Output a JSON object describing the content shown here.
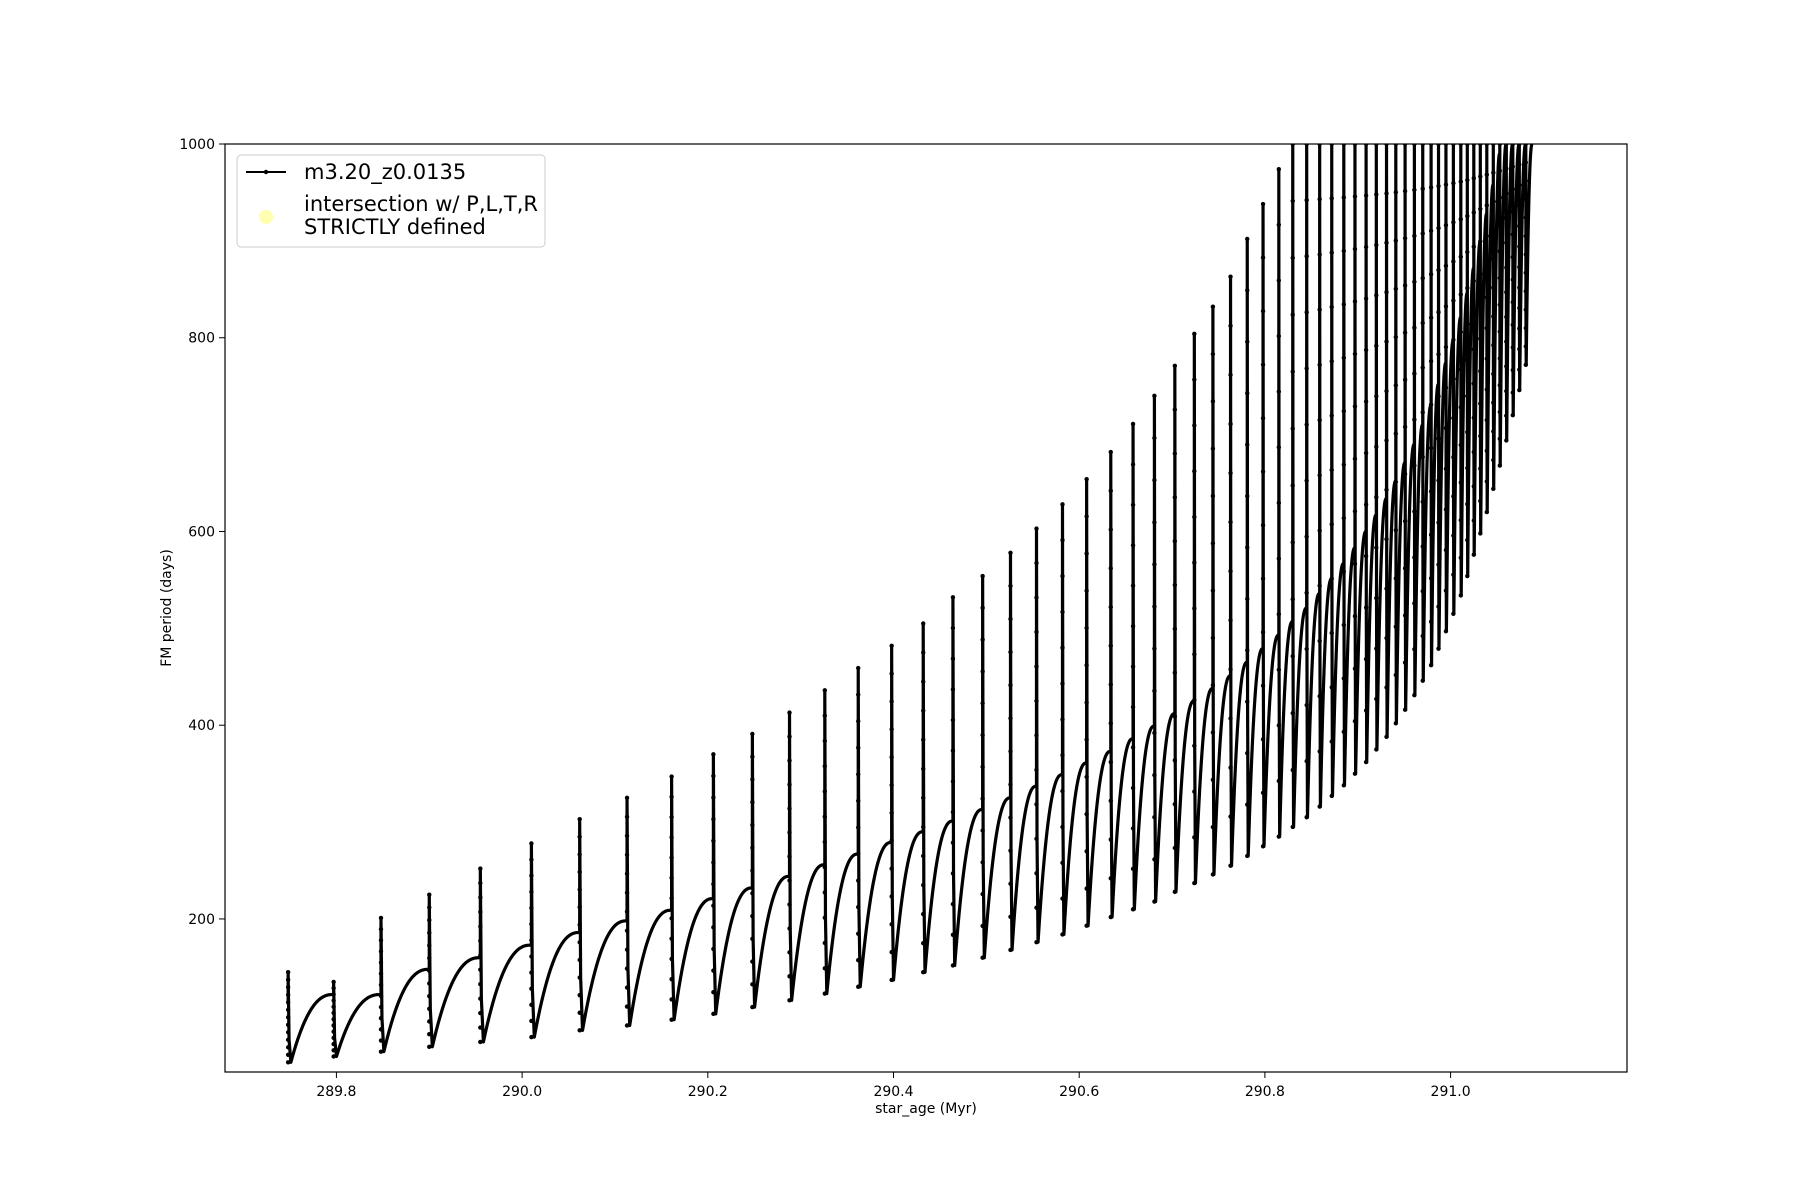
{
  "chart_data": {
    "type": "line",
    "title": "",
    "xlabel": "star_age (Myr)",
    "ylabel": "FM period (days)",
    "xlim": [
      289.68,
      291.19
    ],
    "ylim": [
      42,
      1000
    ],
    "xticks": [
      289.8,
      290.0,
      290.2,
      290.4,
      290.6,
      290.8,
      291.0
    ],
    "xtick_labels": [
      "289.8",
      "290.0",
      "290.2",
      "290.4",
      "290.6",
      "290.8",
      "291.0"
    ],
    "yticks": [
      200,
      400,
      600,
      800,
      1000
    ],
    "ytick_labels": [
      "200",
      "400",
      "600",
      "800",
      "1000"
    ],
    "grid": false,
    "legend_position": "upper-left",
    "colors": {
      "series": "#000000",
      "intersection": "#ffffb0"
    },
    "series": [
      {
        "name": "m3.20_z0.0135",
        "style": "line-with-dots",
        "pulse_start_age": [
          289.748,
          289.797,
          289.848,
          289.9,
          289.955,
          290.01,
          290.062,
          290.113,
          290.161,
          290.206,
          290.248,
          290.288,
          290.326,
          290.362,
          290.398,
          290.432,
          290.464,
          290.496,
          290.526,
          290.554,
          290.582,
          290.608,
          290.634,
          290.658,
          290.681,
          290.703,
          290.724,
          290.744,
          290.763,
          290.781,
          290.798,
          290.815,
          290.83,
          290.845,
          290.859,
          290.872,
          290.885,
          290.897,
          290.909,
          290.92,
          290.931,
          290.941,
          290.951,
          290.961,
          290.97,
          290.979,
          290.987,
          290.995,
          291.003,
          291.011,
          291.018,
          291.025,
          291.032,
          291.039,
          291.046,
          291.053,
          291.06,
          291.067,
          291.074,
          291.081
        ],
        "pulse_min_period": [
          52,
          58,
          63,
          68,
          73,
          78,
          85,
          90,
          96,
          102,
          109,
          116,
          123,
          130,
          137,
          145,
          152,
          160,
          168,
          176,
          184,
          193,
          202,
          210,
          218,
          228,
          237,
          246,
          255,
          265,
          275,
          285,
          295,
          305,
          316,
          327,
          338,
          350,
          362,
          375,
          388,
          402,
          416,
          431,
          446,
          462,
          479,
          497,
          515,
          534,
          554,
          576,
          598,
          620,
          644,
          668,
          694,
          720,
          746,
          772
        ],
        "pulse_max_period": [
          122,
          122,
          148,
          160,
          173,
          186,
          198,
          209,
          221,
          232,
          244,
          256,
          267,
          279,
          290,
          301,
          313,
          325,
          337,
          349,
          361,
          373,
          386,
          399,
          412,
          425,
          438,
          451,
          465,
          479,
          493,
          507,
          521,
          536,
          551,
          567,
          583,
          600,
          617,
          634,
          652,
          671,
          690,
          710,
          730,
          752,
          774,
          797,
          821,
          846,
          872,
          899,
          928,
          958,
          990,
          1000,
          1000,
          1000,
          1000,
          1000
        ],
        "pulse_spike_period": [
          145,
          135,
          201,
          225,
          252,
          278,
          303,
          325,
          347,
          370,
          391,
          413,
          436,
          459,
          482,
          505,
          532,
          554,
          578,
          603,
          628,
          654,
          682,
          711,
          740,
          771,
          804,
          832,
          863,
          902,
          938,
          974,
          1000,
          1000,
          1000,
          1000,
          1000,
          1000,
          1000,
          1000,
          1000,
          1000,
          1000,
          1000,
          1000,
          1000,
          1000,
          1000,
          1000,
          1000,
          1000,
          1000,
          1000,
          1000,
          1000,
          1000,
          1000,
          1000,
          1000,
          1000
        ]
      },
      {
        "name": "intersection w/ P,L,T,R\nSTRICTLY defined",
        "style": "markers",
        "points": []
      }
    ],
    "legend": [
      {
        "label_lines": [
          "m3.20_z0.0135"
        ]
      },
      {
        "label_lines": [
          "intersection w/ P,L,T,R",
          "STRICTLY defined"
        ]
      }
    ]
  }
}
